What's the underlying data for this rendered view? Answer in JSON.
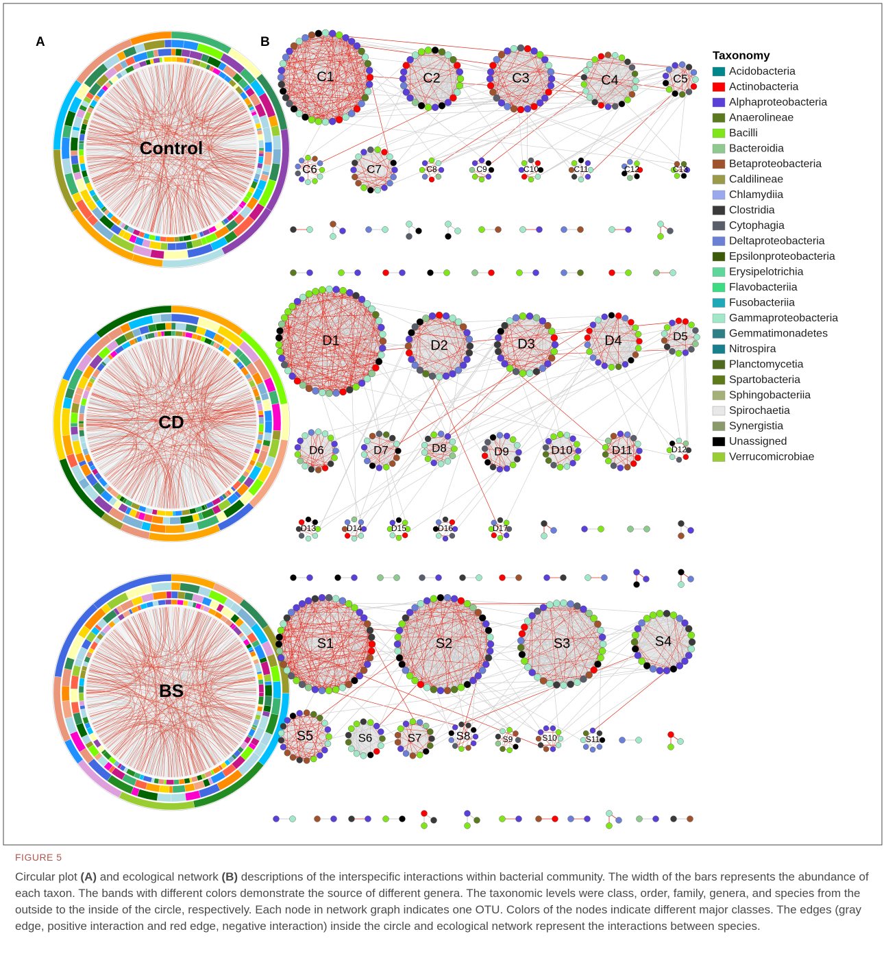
{
  "panel_labels": [
    "A",
    "B"
  ],
  "circular_plots": [
    {
      "label": "Control"
    },
    {
      "label": "CD"
    },
    {
      "label": "BS"
    }
  ],
  "networks": [
    {
      "modules": [
        "C1",
        "C2",
        "C3",
        "C4",
        "C5",
        "C6",
        "C7",
        "C8",
        "C9",
        "C10",
        "C11",
        "C12",
        "C13"
      ]
    },
    {
      "modules": [
        "D1",
        "D2",
        "D3",
        "D4",
        "D5",
        "D6",
        "D7",
        "D8",
        "D9",
        "D10",
        "D11",
        "D12",
        "D13",
        "D14",
        "D15",
        "D16",
        "D17"
      ]
    },
    {
      "modules": [
        "S1",
        "S2",
        "S3",
        "S4",
        "S5",
        "S6",
        "S7",
        "S8",
        "S9",
        "S10",
        "S11"
      ]
    }
  ],
  "legend": {
    "title": "Taxonomy",
    "items": [
      {
        "name": "Acidobacteria",
        "color": "#00868b"
      },
      {
        "name": "Actinobacteria",
        "color": "#ff0000"
      },
      {
        "name": "Alphaproteobacteria",
        "color": "#5b3fd9"
      },
      {
        "name": "Anaerolineae",
        "color": "#5b7a1f"
      },
      {
        "name": "Bacilli",
        "color": "#80e619"
      },
      {
        "name": "Bacteroidia",
        "color": "#8fc98f"
      },
      {
        "name": "Betaproteobacteria",
        "color": "#a0522d"
      },
      {
        "name": "Caldilineae",
        "color": "#9a9a4a"
      },
      {
        "name": "Chlamydiia",
        "color": "#9aa9ee"
      },
      {
        "name": "Clostridia",
        "color": "#3a3a3a"
      },
      {
        "name": "Cytophagia",
        "color": "#5a5e6a"
      },
      {
        "name": "Deltaproteobacteria",
        "color": "#6b7fd6"
      },
      {
        "name": "Epsilonproteobacteria",
        "color": "#3d5a0a"
      },
      {
        "name": "Erysipelotrichia",
        "color": "#5fd69a"
      },
      {
        "name": "Flavobacteriia",
        "color": "#3ddc84"
      },
      {
        "name": "Fusobacteriia",
        "color": "#1fa8b8"
      },
      {
        "name": "Gammaproteobacteria",
        "color": "#a0e8c8"
      },
      {
        "name": "Gemmatimonadetes",
        "color": "#2f7f86"
      },
      {
        "name": "Nitrospira",
        "color": "#17808c"
      },
      {
        "name": "Planctomycetia",
        "color": "#4f6b1f"
      },
      {
        "name": "Spartobacteria",
        "color": "#5e7a1a"
      },
      {
        "name": "Sphingobacteriia",
        "color": "#a4b078"
      },
      {
        "name": "Spirochaetia",
        "color": "#e8e8e8"
      },
      {
        "name": "Synergistia",
        "color": "#8b9a6b"
      },
      {
        "name": "Unassigned",
        "color": "#000000"
      },
      {
        "name": "Verrucomicrobiae",
        "color": "#9acd32"
      }
    ]
  },
  "caption": {
    "label": "FIGURE 5",
    "text": [
      "Circular plot ",
      "(A)",
      " and ecological network ",
      "(B)",
      " descriptions of the interspecific interactions within bacterial community. The width of the bars represents the abundance of each taxon. The bands with different colors demonstrate the source of different genera. The taxonomic levels were class, order, family, genera, and species from the outside to the inside of the circle, respectively. Each node in network graph indicates one OTU. Colors of the nodes indicate different major classes. The edges (gray edge, positive interaction and red edge, negative interaction) inside the circle and ecological network represent the interactions between species."
    ]
  }
}
